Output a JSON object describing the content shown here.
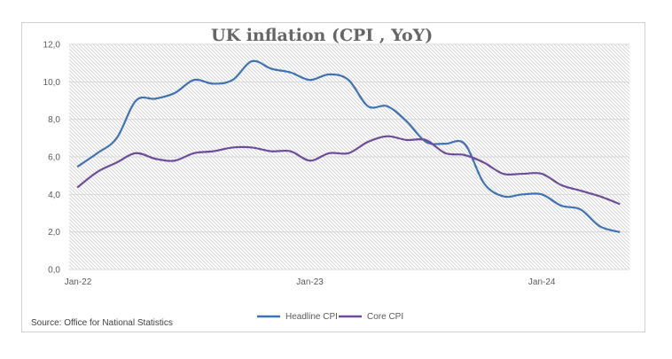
{
  "chart_data": {
    "type": "line",
    "title": "UK inflation (CPI , YoY)",
    "xlabel": "",
    "ylabel": "",
    "ylim": [
      0,
      12
    ],
    "y_ticks": [
      "0,0",
      "2,0",
      "4,0",
      "6,0",
      "8,0",
      "10,0",
      "12,0"
    ],
    "y_tick_values": [
      0,
      2,
      4,
      6,
      8,
      10,
      12
    ],
    "x_tick_labels": [
      "Jan-22",
      "Jan-23",
      "Jan-24"
    ],
    "x_tick_indices": [
      0,
      12,
      24
    ],
    "x": [
      "Jan-22",
      "Feb-22",
      "Mar-22",
      "Apr-22",
      "May-22",
      "Jun-22",
      "Jul-22",
      "Aug-22",
      "Sep-22",
      "Oct-22",
      "Nov-22",
      "Dec-22",
      "Jan-23",
      "Feb-23",
      "Mar-23",
      "Apr-23",
      "May-23",
      "Jun-23",
      "Jul-23",
      "Aug-23",
      "Sep-23",
      "Oct-23",
      "Nov-23",
      "Dec-23",
      "Jan-24",
      "Feb-24",
      "Mar-24",
      "Apr-24",
      "May-24"
    ],
    "grid": true,
    "legend_position": "bottom",
    "series": [
      {
        "name": "Headline CPI",
        "color": "#3d72b4",
        "values": [
          5.5,
          6.2,
          7.0,
          9.0,
          9.1,
          9.4,
          10.1,
          9.9,
          10.1,
          11.1,
          10.7,
          10.5,
          10.1,
          10.4,
          10.1,
          8.7,
          8.7,
          7.9,
          6.8,
          6.7,
          6.7,
          4.6,
          3.9,
          4.0,
          4.0,
          3.4,
          3.2,
          2.3,
          2.0
        ]
      },
      {
        "name": "Core CPI",
        "color": "#6d4c9c",
        "values": [
          4.4,
          5.2,
          5.7,
          6.2,
          5.9,
          5.8,
          6.2,
          6.3,
          6.5,
          6.5,
          6.3,
          6.3,
          5.8,
          6.2,
          6.2,
          6.8,
          7.1,
          6.9,
          6.9,
          6.2,
          6.1,
          5.7,
          5.1,
          5.1,
          5.1,
          4.5,
          4.2,
          3.9,
          3.5
        ]
      }
    ],
    "source": "Source: Office for National Statistics"
  }
}
